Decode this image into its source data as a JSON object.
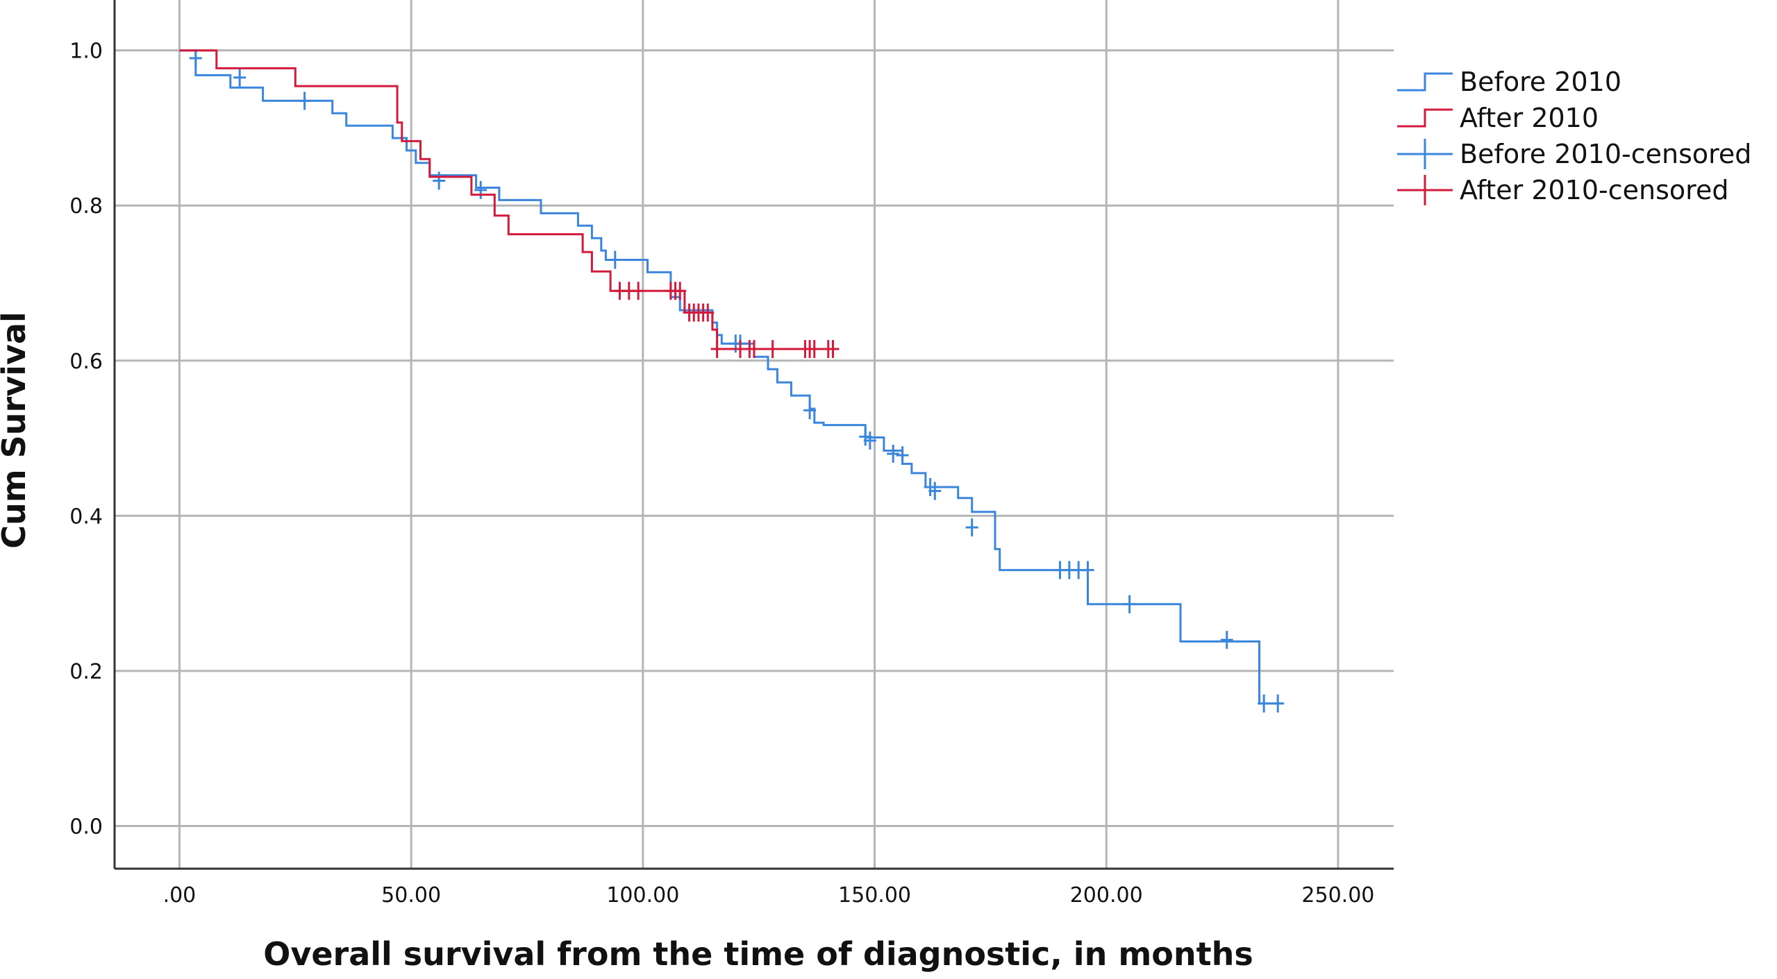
{
  "chart_data": {
    "type": "line",
    "subtype": "kaplan-meier step curve",
    "xlabel": "Overall survival from the time of diagnostic, in months",
    "ylabel": "Cum Survival",
    "xlim": [
      -14,
      262
    ],
    "ylim": [
      -0.055,
      1.065
    ],
    "x_ticks": [
      0,
      50,
      100,
      150,
      200,
      250
    ],
    "x_tick_labels": [
      ".00",
      "50.00",
      "100.00",
      "150.00",
      "200.00",
      "250.00"
    ],
    "y_ticks": [
      0.0,
      0.2,
      0.4,
      0.6,
      0.8,
      1.0
    ],
    "y_tick_labels": [
      "0.0",
      "0.2",
      "0.4",
      "0.6",
      "0.8",
      "1.0"
    ],
    "grid": true,
    "legend_position": "right, outside plot, top",
    "legend": [
      {
        "label": "Before 2010",
        "kind": "step",
        "color": "#3b86dd"
      },
      {
        "label": "After 2010",
        "kind": "step",
        "color": "#d21a3c"
      },
      {
        "label": "Before 2010-censored",
        "kind": "censor",
        "color": "#3b86dd"
      },
      {
        "label": "After 2010-censored",
        "kind": "censor",
        "color": "#d21a3c"
      }
    ],
    "series": [
      {
        "name": "Before 2010",
        "color": "#3b86dd",
        "steps": [
          [
            0,
            1.0
          ],
          [
            3.5,
            0.968
          ],
          [
            11,
            0.952
          ],
          [
            18,
            0.935
          ],
          [
            33,
            0.919
          ],
          [
            36,
            0.903
          ],
          [
            46,
            0.887
          ],
          [
            49,
            0.871
          ],
          [
            51,
            0.855
          ],
          [
            54,
            0.839
          ],
          [
            64,
            0.823
          ],
          [
            69,
            0.807
          ],
          [
            78,
            0.79
          ],
          [
            86,
            0.774
          ],
          [
            89,
            0.758
          ],
          [
            91,
            0.742
          ],
          [
            92,
            0.73
          ],
          [
            101,
            0.714
          ],
          [
            106,
            0.682
          ],
          [
            108,
            0.665
          ],
          [
            115,
            0.649
          ],
          [
            116,
            0.633
          ],
          [
            117,
            0.622
          ],
          [
            124,
            0.605
          ],
          [
            127,
            0.589
          ],
          [
            129,
            0.572
          ],
          [
            132,
            0.555
          ],
          [
            136,
            0.538
          ],
          [
            137,
            0.52
          ],
          [
            139,
            0.517
          ],
          [
            148,
            0.501
          ],
          [
            152,
            0.484
          ],
          [
            156,
            0.467
          ],
          [
            158,
            0.455
          ],
          [
            161,
            0.437
          ],
          [
            168,
            0.423
          ],
          [
            171,
            0.405
          ],
          [
            176,
            0.357
          ],
          [
            177,
            0.33
          ],
          [
            196,
            0.286
          ],
          [
            216,
            0.238
          ],
          [
            233,
            0.158
          ],
          [
            238,
            0.158
          ]
        ],
        "censored": [
          [
            3.5,
            0.99
          ],
          [
            13,
            0.965
          ],
          [
            27,
            0.935
          ],
          [
            56,
            0.832
          ],
          [
            65,
            0.82
          ],
          [
            94,
            0.73
          ],
          [
            120,
            0.622
          ],
          [
            121,
            0.622
          ],
          [
            136,
            0.536
          ],
          [
            148,
            0.502
          ],
          [
            149,
            0.497
          ],
          [
            154,
            0.48
          ],
          [
            156,
            0.478
          ],
          [
            162,
            0.437
          ],
          [
            163,
            0.432
          ],
          [
            171,
            0.385
          ],
          [
            190,
            0.33
          ],
          [
            192,
            0.33
          ],
          [
            194,
            0.33
          ],
          [
            196,
            0.33
          ],
          [
            205,
            0.286
          ],
          [
            226,
            0.24
          ],
          [
            234,
            0.158
          ],
          [
            237,
            0.158
          ]
        ]
      },
      {
        "name": "After 2010",
        "color": "#d21a3c",
        "steps": [
          [
            0,
            1.0
          ],
          [
            8,
            0.977
          ],
          [
            25,
            0.954
          ],
          [
            47,
            0.907
          ],
          [
            48,
            0.883
          ],
          [
            52,
            0.86
          ],
          [
            54,
            0.837
          ],
          [
            63,
            0.814
          ],
          [
            68,
            0.787
          ],
          [
            71,
            0.763
          ],
          [
            87,
            0.74
          ],
          [
            89,
            0.715
          ],
          [
            93,
            0.69
          ],
          [
            109,
            0.662
          ],
          [
            115,
            0.64
          ],
          [
            116,
            0.615
          ],
          [
            141,
            0.615
          ]
        ],
        "censored": [
          [
            95,
            0.69
          ],
          [
            97,
            0.69
          ],
          [
            99,
            0.69
          ],
          [
            106,
            0.69
          ],
          [
            107,
            0.69
          ],
          [
            108,
            0.69
          ],
          [
            110,
            0.662
          ],
          [
            111,
            0.662
          ],
          [
            112,
            0.662
          ],
          [
            113,
            0.662
          ],
          [
            114,
            0.662
          ],
          [
            116,
            0.615
          ],
          [
            121,
            0.615
          ],
          [
            123,
            0.615
          ],
          [
            124,
            0.615
          ],
          [
            128,
            0.615
          ],
          [
            135,
            0.615
          ],
          [
            136,
            0.615
          ],
          [
            137,
            0.615
          ],
          [
            140,
            0.615
          ],
          [
            141,
            0.615
          ]
        ]
      }
    ]
  }
}
